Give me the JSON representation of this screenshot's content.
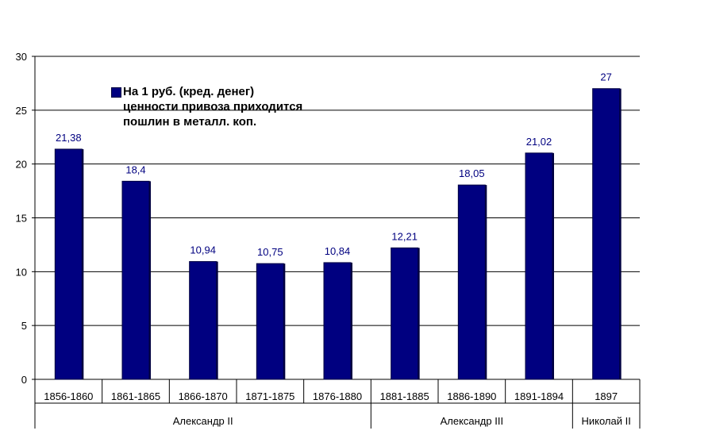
{
  "chart_data": {
    "type": "bar",
    "title": "",
    "xlabel": "",
    "ylabel": "",
    "ylim": [
      0,
      30
    ],
    "yticks": [
      0,
      5,
      10,
      15,
      20,
      25,
      30
    ],
    "grid": true,
    "legend_position": "top-left",
    "bar_color": "#000080",
    "label_color": "#000080",
    "categories": [
      "1856-1860",
      "1861-1865",
      "1866-1870",
      "1871-1875",
      "1876-1880",
      "1881-1885",
      "1886-1890",
      "1891-1894",
      "1897"
    ],
    "series": [
      {
        "name": "На 1 руб. (кред. денег) ценности привоза приходится пошлин в металл. коп.",
        "values": [
          21.38,
          18.4,
          10.94,
          10.75,
          10.84,
          12.21,
          18.05,
          21.02,
          27
        ]
      }
    ],
    "data_labels": [
      "21,38",
      "18,4",
      "10,94",
      "10,75",
      "10,84",
      "12,21",
      "18,05",
      "21,02",
      "27"
    ],
    "groups": [
      {
        "label": "Александр II",
        "count": 5
      },
      {
        "label": "Александр III",
        "count": 3
      },
      {
        "label": "Николай II",
        "count": 1
      }
    ]
  },
  "legend": {
    "text": "На 1 руб. (кред. денег)\nценности привоза приходится\nпошлин в металл. коп."
  }
}
